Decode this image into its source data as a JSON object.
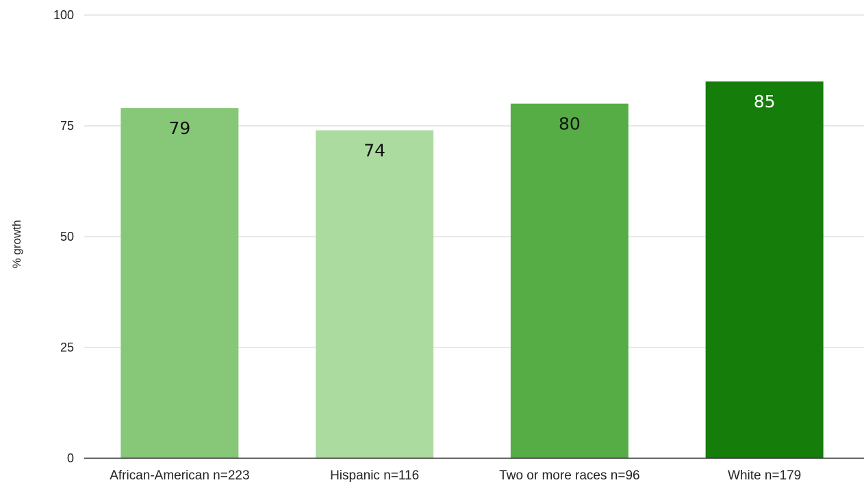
{
  "chart_data": {
    "type": "bar",
    "title": "",
    "xlabel": "",
    "ylabel": "% growth",
    "ylim": [
      0,
      100
    ],
    "yticks": [
      0,
      25,
      50,
      75,
      100
    ],
    "grid": true,
    "legend": "none",
    "categories": [
      "African-American n=223",
      "Hispanic n=116",
      "Two or more races n=96",
      "White n=179"
    ],
    "values": [
      79,
      74,
      80,
      85
    ],
    "data_labels": [
      "79",
      "74",
      "80",
      "85"
    ],
    "bar_colors": [
      "#86c877",
      "#acdba0",
      "#56ad45",
      "#157d09"
    ],
    "data_label_colors": [
      "#111111",
      "#111111",
      "#111111",
      "#ffffff"
    ],
    "gridline_color": "#d9d9d9",
    "axis_color": "#333333"
  }
}
